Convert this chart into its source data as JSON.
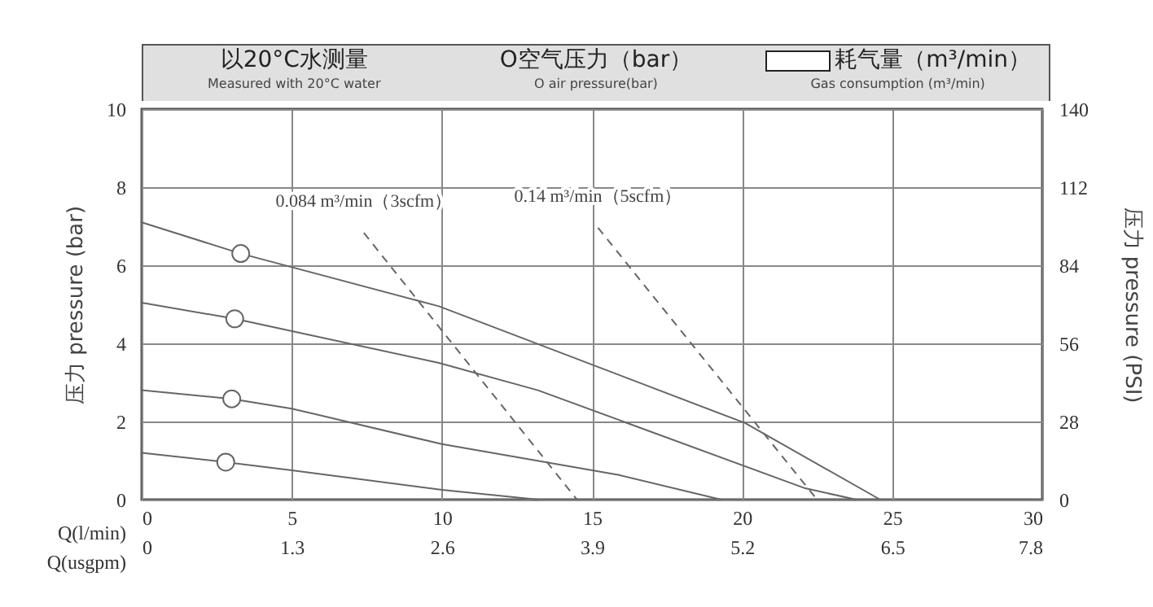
{
  "chart_data": {
    "type": "line",
    "xlabel": "Q(l/min)",
    "x2label": "Q(usgpm)",
    "ylabel": "压力 pressure (bar)",
    "y2label": "压力 pressure (PSI)",
    "annotations": [
      "以20°C水测量",
      "Measured with 20°C water",
      "O空气压力（bar）",
      "O air pressure(bar)",
      "耗气量（m³/min）",
      "Gas consumption (m³/min)"
    ],
    "xlim": [
      0,
      30
    ],
    "xticks": [
      0,
      5,
      10,
      15,
      20,
      25,
      30
    ],
    "x2lim": [
      0,
      7.8
    ],
    "x2ticks": [
      0,
      1.3,
      2.6,
      3.9,
      5.2,
      6.5,
      7.8
    ],
    "ylim": [
      0,
      10
    ],
    "yticks": [
      0,
      2,
      4,
      6,
      8,
      10
    ],
    "y2lim": [
      0,
      140
    ],
    "y2ticks": [
      0,
      28,
      56,
      84,
      112,
      140
    ],
    "grid": true,
    "marker": "none",
    "line_style": "solid",
    "series": [
      {
        "color": "#666666",
        "x": [
          0,
          3.3,
          9.9,
          20.1,
          24.6
        ],
        "values": [
          7.1,
          6.3,
          4.95,
          1.96,
          0
        ]
      },
      {
        "color": "#666666",
        "x": [
          0,
          3.1,
          9.9,
          13.2,
          22.1,
          23.8
        ],
        "values": [
          5.04,
          4.63,
          3.5,
          2.8,
          0.29,
          0
        ]
      },
      {
        "color": "#666666",
        "x": [
          0,
          3.0,
          5.0,
          10.0,
          15.9,
          19.3
        ],
        "values": [
          2.8,
          2.58,
          2.33,
          1.42,
          0.63,
          0
        ]
      },
      {
        "color": "#666666",
        "x": [
          0,
          2.8,
          5.0,
          10.0,
          13.2
        ],
        "values": [
          1.2,
          0.96,
          0.75,
          0.25,
          0
        ]
      },
      {
        "name": "0.084 m³/min（3scfm）",
        "line_style": "dashed",
        "color": "#666666",
        "x": [
          7.4,
          14.5
        ],
        "values": [
          6.83,
          0
        ]
      },
      {
        "name": "0.14 m³/min（5scfm）",
        "line_style": "dashed",
        "color": "#666666",
        "x": [
          15.2,
          22.5
        ],
        "values": [
          6.96,
          0
        ]
      },
      {
        "type": "scatter",
        "marker": "circle",
        "color": "#666666",
        "x": [
          3.3,
          3.1,
          3.0,
          2.8
        ],
        "values": [
          6.3,
          4.63,
          2.58,
          0.96
        ]
      }
    ]
  }
}
